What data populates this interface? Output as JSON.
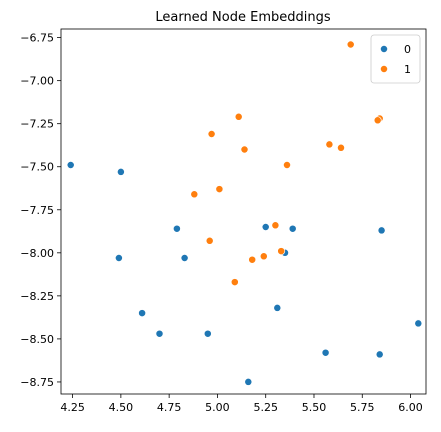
{
  "chart_data": {
    "type": "scatter",
    "title": "Learned Node Embeddings",
    "xlabel": "",
    "ylabel": "",
    "xlim": [
      4.19,
      6.08
    ],
    "ylim": [
      -8.82,
      -6.7
    ],
    "xticks": [
      "4.25",
      "4.50",
      "4.75",
      "5.00",
      "5.25",
      "5.50",
      "5.75",
      "6.00"
    ],
    "xtick_values": [
      4.25,
      4.5,
      4.75,
      5.0,
      5.25,
      5.5,
      5.75,
      6.0
    ],
    "yticks": [
      "−6.75",
      "−7.00",
      "−7.25",
      "−7.50",
      "−7.75",
      "−8.00",
      "−8.25",
      "−8.50",
      "−8.75"
    ],
    "ytick_values": [
      -6.75,
      -7.0,
      -7.25,
      -7.5,
      -7.75,
      -8.0,
      -8.25,
      -8.5,
      -8.75
    ],
    "grid": false,
    "legend": "top-right",
    "series": [
      {
        "name": "0",
        "color": "#1f77b4",
        "points": [
          [
            4.24,
            -7.49
          ],
          [
            4.5,
            -7.53
          ],
          [
            4.49,
            -8.03
          ],
          [
            4.79,
            -7.86
          ],
          [
            4.83,
            -8.03
          ],
          [
            4.61,
            -8.35
          ],
          [
            4.7,
            -8.47
          ],
          [
            4.95,
            -8.47
          ],
          [
            5.16,
            -8.75
          ],
          [
            5.25,
            -7.85
          ],
          [
            5.35,
            -8.0
          ],
          [
            5.39,
            -7.86
          ],
          [
            5.31,
            -8.32
          ],
          [
            5.56,
            -8.58
          ],
          [
            5.85,
            -7.87
          ],
          [
            5.84,
            -8.59
          ],
          [
            6.04,
            -8.41
          ]
        ]
      },
      {
        "name": "1",
        "color": "#ff7f0e",
        "points": [
          [
            5.69,
            -6.79
          ],
          [
            5.11,
            -7.21
          ],
          [
            4.97,
            -7.31
          ],
          [
            5.14,
            -7.4
          ],
          [
            5.84,
            -7.22
          ],
          [
            5.83,
            -7.23
          ],
          [
            5.58,
            -7.37
          ],
          [
            5.64,
            -7.39
          ],
          [
            5.36,
            -7.49
          ],
          [
            4.88,
            -7.66
          ],
          [
            5.01,
            -7.63
          ],
          [
            4.96,
            -7.93
          ],
          [
            5.3,
            -7.84
          ],
          [
            5.24,
            -8.02
          ],
          [
            5.33,
            -7.99
          ],
          [
            5.18,
            -8.04
          ],
          [
            5.09,
            -8.17
          ]
        ]
      }
    ]
  }
}
